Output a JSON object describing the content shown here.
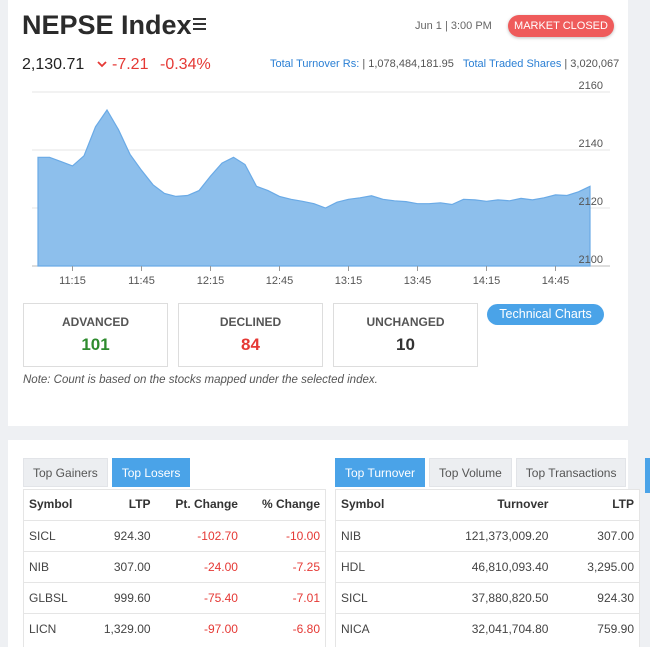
{
  "header": {
    "title": "NEPSE Index",
    "date": "Jun 1 | 3:00 PM",
    "status_badge": "MARKET CLOSED"
  },
  "index": {
    "value": "2,130.71",
    "change": "-7.21",
    "change_pct": "-0.34%"
  },
  "turnover": {
    "turnover_label": "Total Turnover Rs:",
    "turnover_value": "| 1,078,484,181.95",
    "shares_label": "Total Traded Shares",
    "shares_value": "| 3,020,067"
  },
  "chart_data": {
    "type": "area",
    "x_ticks": [
      "11:15",
      "11:45",
      "12:15",
      "12:45",
      "13:15",
      "13:45",
      "14:15",
      "14:45"
    ],
    "y_ticks": [
      2160,
      2140,
      2120,
      2100
    ],
    "ylim": [
      2100,
      2160
    ],
    "grid": true,
    "color": "#8dbfec",
    "series": [
      {
        "x": [
          "11:00",
          "11:05",
          "11:10",
          "11:15",
          "11:20",
          "11:25",
          "11:30",
          "11:35",
          "11:40",
          "11:45",
          "11:50",
          "11:55",
          "12:00",
          "12:05",
          "12:10",
          "12:15",
          "12:20",
          "12:25",
          "12:30",
          "12:35",
          "12:40",
          "12:45",
          "12:50",
          "12:55",
          "13:00",
          "13:05",
          "13:10",
          "13:15",
          "13:20",
          "13:25",
          "13:30",
          "13:35",
          "13:40",
          "13:45",
          "13:50",
          "13:55",
          "14:00",
          "14:05",
          "14:10",
          "14:15",
          "14:20",
          "14:25",
          "14:30",
          "14:35",
          "14:40",
          "14:45",
          "14:50",
          "14:55",
          "15:00"
        ],
        "values": [
          2137.5,
          2137.5,
          2136,
          2134.5,
          2138,
          2148,
          2153.8,
          2147,
          2138.5,
          2133,
          2128,
          2125,
          2124,
          2124.3,
          2126,
          2131,
          2135.5,
          2137.5,
          2135,
          2127.5,
          2126,
          2124,
          2123,
          2122.3,
          2121.5,
          2120,
          2122,
          2123,
          2123.5,
          2124.2,
          2123,
          2122.5,
          2122.2,
          2121.5,
          2121.5,
          2121.8,
          2121.2,
          2123,
          2122.8,
          2122.3,
          2122.8,
          2122.5,
          2123.3,
          2122.8,
          2123.5,
          2124.5,
          2124.3,
          2125.6,
          2127.5
        ]
      }
    ]
  },
  "counts": {
    "advanced_label": "ADVANCED",
    "advanced_value": "101",
    "declined_label": "DECLINED",
    "declined_value": "84",
    "unchanged_label": "UNCHANGED",
    "unchanged_value": "10",
    "advanced_color": "#2e8b2e",
    "declined_color": "#e53935",
    "unchanged_color": "#333333"
  },
  "technical_button": "Technical Charts",
  "note": "Note: Count is based on the stocks mapped under the selected index.",
  "left_tabs": [
    "Top Gainers",
    "Top Losers"
  ],
  "left_active_tab": 1,
  "left_table": {
    "headers": [
      "Symbol",
      "LTP",
      "Pt. Change",
      "% Change"
    ],
    "rows": [
      [
        "SICL",
        "924.30",
        "-102.70",
        "-10.00"
      ],
      [
        "NIB",
        "307.00",
        "-24.00",
        "-7.25"
      ],
      [
        "GLBSL",
        "999.60",
        "-75.40",
        "-7.01"
      ],
      [
        "LICN",
        "1,329.00",
        "-97.00",
        "-6.80"
      ]
    ]
  },
  "right_tabs": [
    "Top Turnover",
    "Top Volume",
    "Top Transactions"
  ],
  "right_active_tab": 0,
  "right_table": {
    "headers": [
      "Symbol",
      "Turnover",
      "LTP"
    ],
    "rows": [
      [
        "NIB",
        "121,373,009.20",
        "307.00"
      ],
      [
        "HDL",
        "46,810,093.40",
        "3,295.00"
      ],
      [
        "SICL",
        "37,880,820.50",
        "924.30"
      ],
      [
        "NICA",
        "32,041,704.80",
        "759.90"
      ]
    ]
  }
}
